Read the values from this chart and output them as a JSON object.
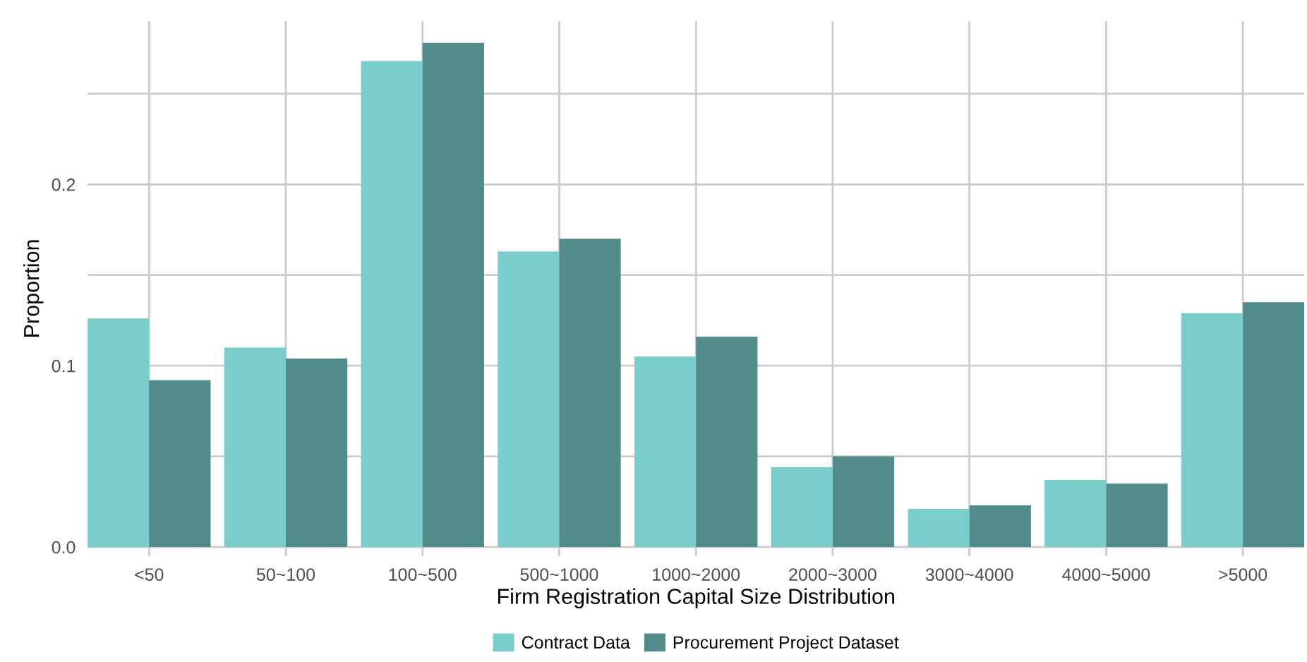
{
  "chart_data": {
    "type": "bar",
    "xlabel": "Firm Registration Capital Size Distribution",
    "ylabel": "Proportion",
    "categories": [
      "<50",
      "50~100",
      "100~500",
      "500~1000",
      "1000~2000",
      "2000~3000",
      "3000~4000",
      "4000~5000",
      ">5000"
    ],
    "series": [
      {
        "name": "Contract Data",
        "color": "#79cdcd",
        "values": [
          0.126,
          0.11,
          0.268,
          0.163,
          0.105,
          0.044,
          0.021,
          0.037,
          0.129
        ]
      },
      {
        "name": "Procurement Project Dataset",
        "color": "#528b8b",
        "values": [
          0.092,
          0.104,
          0.278,
          0.17,
          0.116,
          0.05,
          0.023,
          0.035,
          0.135
        ]
      }
    ],
    "ylim": [
      -0.005,
      0.29
    ],
    "yticks": [
      {
        "value": 0,
        "label": "0.0"
      },
      {
        "value": 0.05,
        "label": null
      },
      0.1,
      {
        "value": 0.15,
        "label": null
      },
      0.2,
      {
        "value": 0.25,
        "label": null
      }
    ],
    "grid": true,
    "legend": "bottom"
  }
}
